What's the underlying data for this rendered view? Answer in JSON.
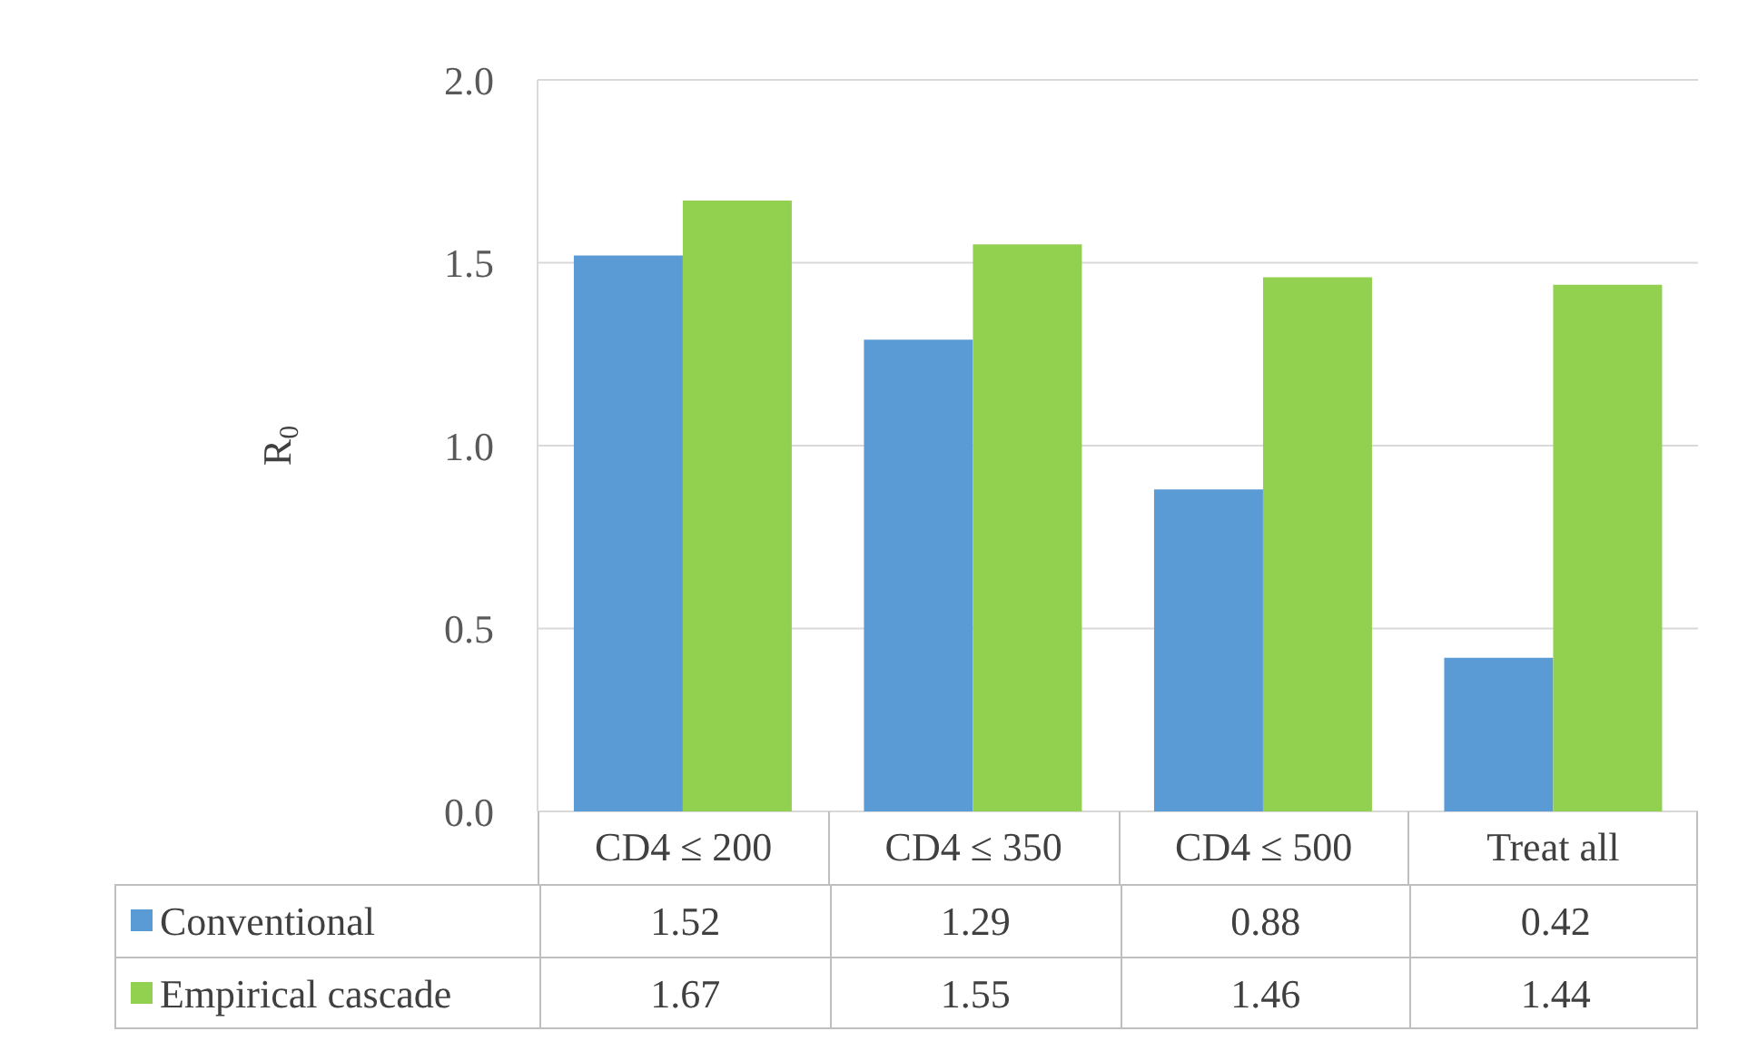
{
  "chart_data": {
    "type": "bar",
    "ylabel": "R$_{0}$",
    "categories": [
      "CD4 ≤ 200",
      "CD4 ≤ 350",
      "CD4 ≤ 500",
      "Treat all"
    ],
    "series": [
      {
        "name": "Conventional",
        "color": "#5b9bd5",
        "values": [
          1.52,
          1.29,
          0.88,
          0.42
        ]
      },
      {
        "name": "Empirical cascade",
        "color": "#92d050",
        "values": [
          1.67,
          1.55,
          1.46,
          1.44
        ]
      }
    ],
    "ylim": [
      0,
      2
    ],
    "yticks": [
      {
        "value": 0,
        "label": "0.0"
      },
      {
        "value": 0.5,
        "label": "0.5"
      },
      {
        "value": 1,
        "label": "1.0"
      },
      {
        "value": 1.5,
        "label": "1.5"
      },
      {
        "value": 2,
        "label": "2.0"
      }
    ],
    "grid": "y",
    "legend": "bottom",
    "data_labels": true
  }
}
